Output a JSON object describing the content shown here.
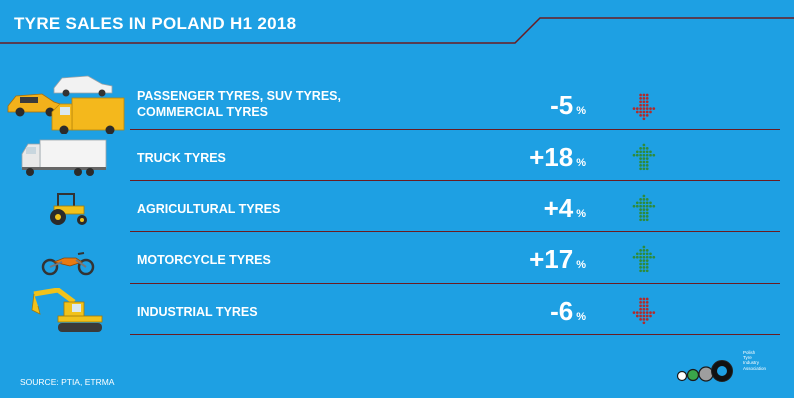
{
  "title": "TYRE SALES IN POLAND H1 2018",
  "colors": {
    "background": "#1ea0e3",
    "divider": "#6a1c22",
    "up_arrow": "#2e8b3a",
    "down_arrow": "#b32a2a"
  },
  "rows": [
    {
      "label_lines": [
        "PASSENGER TYRES, SUV TYRES,",
        "COMMERCIAL TYRES"
      ],
      "change": "-5",
      "unit": "%",
      "direction": "down",
      "icon": "cars-van-icon"
    },
    {
      "label_lines": [
        "TRUCK TYRES"
      ],
      "change": "+18",
      "unit": "%",
      "direction": "up",
      "icon": "truck-icon"
    },
    {
      "label_lines": [
        "AGRICULTURAL TYRES"
      ],
      "change": "+4",
      "unit": "%",
      "direction": "up",
      "icon": "tractor-icon"
    },
    {
      "label_lines": [
        "MOTORCYCLE TYRES"
      ],
      "change": "+17",
      "unit": "%",
      "direction": "up",
      "icon": "motorcycle-icon"
    },
    {
      "label_lines": [
        "INDUSTRIAL TYRES"
      ],
      "change": "-6",
      "unit": "%",
      "direction": "down",
      "icon": "excavator-icon"
    }
  ],
  "source": "SOURCE: PTIA, ETRMA",
  "logo_text": [
    "Polish",
    "Tyre",
    "Industry",
    "Association"
  ]
}
